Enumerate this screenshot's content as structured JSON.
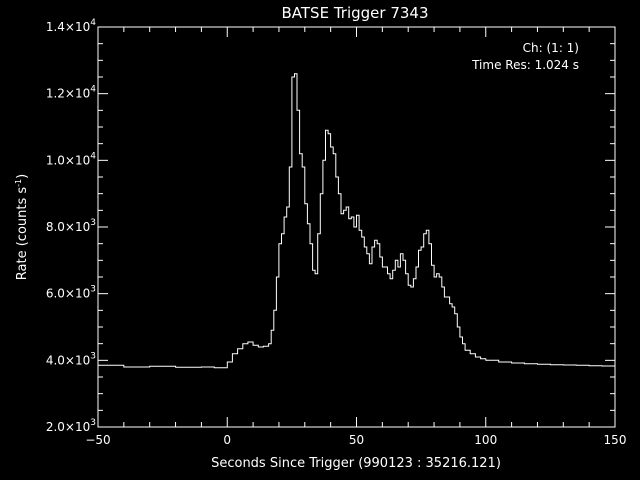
{
  "chart_data": {
    "type": "line",
    "title": "BATSE Trigger 7343",
    "xlabel": "Seconds Since Trigger (990123 : 35216.121)",
    "ylabel_main": "Rate (counts s",
    "ylabel_sup": "-1",
    "ylabel_close": ")",
    "annotations": [
      "Ch: (1: 1)",
      "Time Res: 1.024 s"
    ],
    "xlim": [
      -50,
      150
    ],
    "ylim": [
      2000,
      14000
    ],
    "x_ticks": [
      -50,
      0,
      50,
      100,
      150
    ],
    "x_tick_labels": [
      "−50",
      "0",
      "50",
      "100",
      "150"
    ],
    "y_ticks": [
      2000,
      4000,
      6000,
      8000,
      10000,
      12000,
      14000
    ],
    "y_tick_labels": [
      {
        "mant": "2.0×10",
        "exp": "3"
      },
      {
        "mant": "4.0×10",
        "exp": "3"
      },
      {
        "mant": "6.0×10",
        "exp": "3"
      },
      {
        "mant": "8.0×10",
        "exp": "3"
      },
      {
        "mant": "1.0×10",
        "exp": "4"
      },
      {
        "mant": "1.2×10",
        "exp": "4"
      },
      {
        "mant": "1.4×10",
        "exp": "4"
      }
    ],
    "line_color": "#ffffff",
    "background": "#000000",
    "series": [
      {
        "step": "post",
        "points": [
          [
            -50,
            3850
          ],
          [
            -40,
            3800
          ],
          [
            -30,
            3820
          ],
          [
            -20,
            3790
          ],
          [
            -10,
            3800
          ],
          [
            -5,
            3780
          ],
          [
            0,
            3950
          ],
          [
            2,
            4200
          ],
          [
            4,
            4350
          ],
          [
            6,
            4500
          ],
          [
            8,
            4550
          ],
          [
            10,
            4450
          ],
          [
            12,
            4400
          ],
          [
            14,
            4420
          ],
          [
            16,
            4500
          ],
          [
            17,
            4900
          ],
          [
            18,
            5500
          ],
          [
            19,
            6500
          ],
          [
            20,
            7500
          ],
          [
            21,
            7800
          ],
          [
            22,
            8300
          ],
          [
            23,
            8600
          ],
          [
            24,
            9800
          ],
          [
            25,
            12500
          ],
          [
            26,
            12600
          ],
          [
            27,
            11500
          ],
          [
            28,
            10200
          ],
          [
            29,
            9800
          ],
          [
            30,
            8700
          ],
          [
            31,
            8100
          ],
          [
            32,
            7500
          ],
          [
            33,
            6700
          ],
          [
            34,
            6600
          ],
          [
            35,
            7800
          ],
          [
            36,
            9000
          ],
          [
            37,
            10000
          ],
          [
            38,
            10900
          ],
          [
            39,
            10800
          ],
          [
            40,
            10400
          ],
          [
            41,
            10200
          ],
          [
            42,
            9500
          ],
          [
            43,
            9000
          ],
          [
            44,
            8400
          ],
          [
            45,
            8500
          ],
          [
            46,
            8600
          ],
          [
            47,
            8250
          ],
          [
            48,
            8300
          ],
          [
            49,
            8000
          ],
          [
            50,
            8350
          ],
          [
            51,
            7900
          ],
          [
            52,
            7700
          ],
          [
            53,
            7400
          ],
          [
            54,
            7200
          ],
          [
            55,
            6900
          ],
          [
            56,
            7400
          ],
          [
            57,
            7600
          ],
          [
            58,
            7500
          ],
          [
            59,
            7100
          ],
          [
            60,
            6800
          ],
          [
            61,
            6800
          ],
          [
            62,
            6600
          ],
          [
            63,
            6450
          ],
          [
            64,
            6700
          ],
          [
            65,
            7000
          ],
          [
            66,
            6800
          ],
          [
            67,
            7200
          ],
          [
            68,
            7000
          ],
          [
            69,
            6600
          ],
          [
            70,
            6250
          ],
          [
            71,
            6200
          ],
          [
            72,
            6450
          ],
          [
            73,
            6800
          ],
          [
            74,
            7300
          ],
          [
            75,
            7400
          ],
          [
            76,
            7800
          ],
          [
            77,
            7900
          ],
          [
            78,
            7500
          ],
          [
            79,
            6850
          ],
          [
            80,
            6500
          ],
          [
            81,
            6600
          ],
          [
            82,
            6500
          ],
          [
            83,
            6200
          ],
          [
            84,
            5900
          ],
          [
            85,
            5900
          ],
          [
            86,
            5700
          ],
          [
            87,
            5600
          ],
          [
            88,
            5400
          ],
          [
            89,
            5000
          ],
          [
            90,
            4700
          ],
          [
            91,
            4500
          ],
          [
            92,
            4300
          ],
          [
            94,
            4200
          ],
          [
            96,
            4100
          ],
          [
            98,
            4050
          ],
          [
            100,
            4000
          ],
          [
            105,
            3950
          ],
          [
            110,
            3920
          ],
          [
            115,
            3900
          ],
          [
            120,
            3880
          ],
          [
            125,
            3870
          ],
          [
            130,
            3860
          ],
          [
            135,
            3850
          ],
          [
            140,
            3840
          ],
          [
            145,
            3830
          ],
          [
            150,
            3830
          ]
        ]
      }
    ]
  }
}
